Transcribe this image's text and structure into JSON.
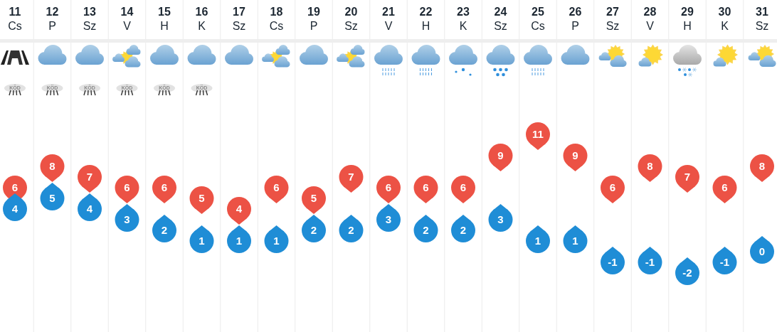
{
  "chart_data": {
    "type": "scatter",
    "categories": [
      "11\nCs",
      "12\nP",
      "13\nSz",
      "14\nV",
      "15\nH",
      "16\nK",
      "17\nSz",
      "18\nCs",
      "19\nP",
      "20\nSz",
      "21\nV",
      "22\nH",
      "23\nK",
      "24\nSz",
      "25\nCs",
      "26\nP",
      "27\nSz",
      "28\nV",
      "29\nH",
      "30\nK",
      "31\nSz"
    ],
    "series": [
      {
        "color": "#ec5245",
        "values": [
          6,
          8,
          7,
          6,
          6,
          5,
          4,
          6,
          5,
          7,
          6,
          6,
          6,
          9,
          11,
          9,
          6,
          8,
          7,
          6,
          8
        ]
      },
      {
        "color": "#1f8dd6",
        "values": [
          4,
          5,
          4,
          3,
          2,
          1,
          1,
          1,
          2,
          2,
          3,
          2,
          2,
          3,
          1,
          1,
          -1,
          -1,
          -2,
          -1,
          0
        ]
      }
    ],
    "data_labels": true,
    "grid": "x",
    "annotations": [
      "KÖD",
      "KÖD",
      "KÖD",
      "KÖD",
      "KÖD",
      "KÖD"
    ]
  }
}
